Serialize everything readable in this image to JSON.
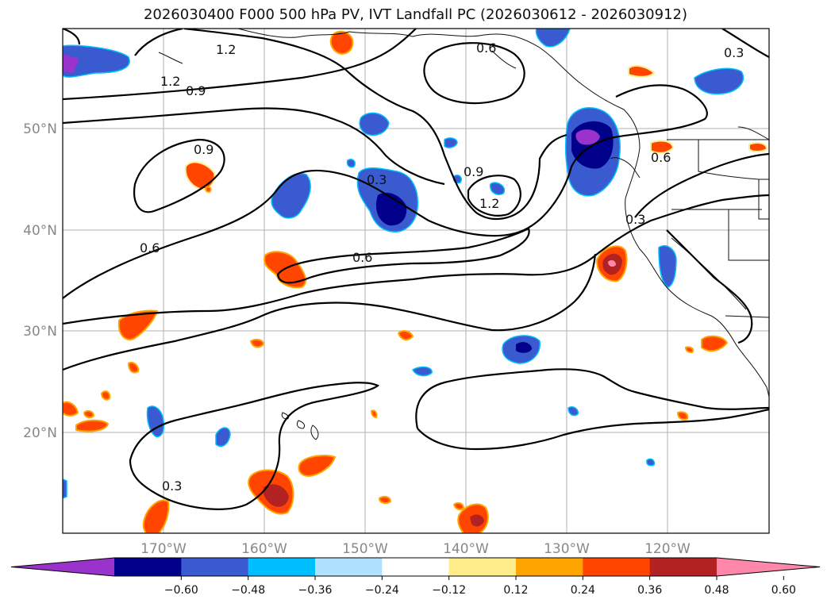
{
  "title": "2026030400 F000 500 hPa PV, IVT Landfall PC (2026030612 - 2026030912)",
  "map": {
    "lon_labels": [
      "170°W",
      "160°W",
      "150°W",
      "140°W",
      "130°W",
      "120°W"
    ],
    "lat_labels": [
      "50°N",
      "40°N",
      "30°N",
      "20°N"
    ],
    "contour_labels": [
      "1.2",
      "1.2",
      "0.9",
      "0.6",
      "0.3",
      "0.9",
      "0.3",
      "0.9",
      "1.2",
      "0.6",
      "0.6",
      "0.3",
      "0.6",
      "0.3"
    ]
  },
  "colorbar": {
    "colors": [
      "#9933cc",
      "#00008b",
      "#3a5ad0",
      "#00bfff",
      "#b0e2ff",
      "#ffffff",
      "#ffec8b",
      "#ffa500",
      "#ff4500",
      "#b22222",
      "#ff88aa"
    ],
    "tick_labels": [
      "−0.60",
      "−0.48",
      "−0.36",
      "−0.24",
      "−0.12",
      "0.12",
      "0.24",
      "0.36",
      "0.48",
      "0.60"
    ]
  }
}
